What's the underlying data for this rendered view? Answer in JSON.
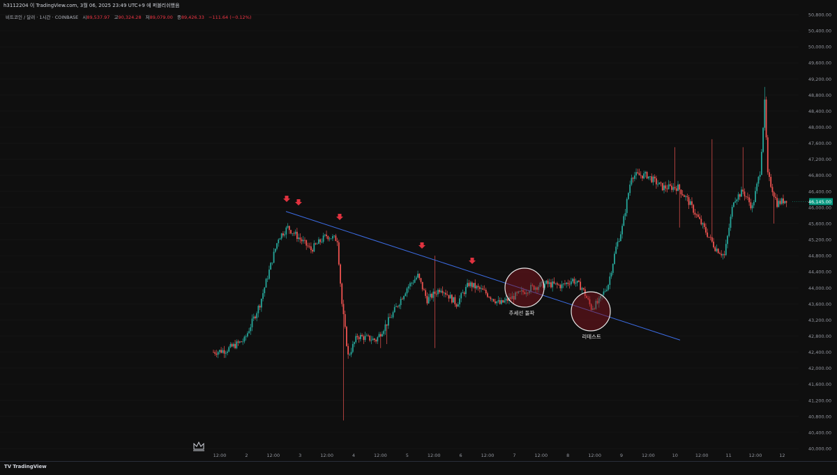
{
  "header": {
    "publisher_line": "h3112204 이 TradingView.com, 3월 06, 2025 23:49 UTC+9 에 퍼블리쉬했음"
  },
  "legend": {
    "symbol": "비트코인 / 달러 · 1시간 · COINBASE",
    "open_label": "시",
    "open_value": "89,537.97",
    "high_label": "고",
    "high_value": "90,324.28",
    "low_label": "저",
    "low_value": "89,079.00",
    "close_label": "종",
    "close_value": "89,426.33",
    "change": "−111.64 (−0.12%)"
  },
  "footer": {
    "logo_text": "TradingView"
  },
  "colors": {
    "background": "#0f0f0f",
    "up": "#26a69a",
    "down": "#ef5350",
    "trendline": "#3d6ee8",
    "arrow": "#e0323f",
    "price_tag": "#089981"
  },
  "chart_data": {
    "type": "candlestick",
    "interval": "1H",
    "y_axis": {
      "min": 40000,
      "max": 50800,
      "step": 400,
      "side": "right",
      "tick_labels": [
        "50,800.00",
        "50,400.00",
        "50,000.00",
        "49,600.00",
        "49,200.00",
        "48,800.00",
        "48,400.00",
        "48,000.00",
        "47,600.00",
        "47,200.00",
        "46,800.00",
        "46,400.00",
        "46,000.00",
        "45,600.00",
        "45,200.00",
        "44,800.00",
        "44,400.00",
        "44,000.00",
        "43,600.00",
        "43,200.00",
        "42,800.00",
        "42,400.00",
        "42,000.00",
        "41,600.00",
        "41,200.00",
        "40,800.00",
        "40,400.00",
        "40,000.00"
      ]
    },
    "x_axis": {
      "tick_labels": [
        "12:00",
        "2",
        "12:00",
        "3",
        "12:00",
        "4",
        "12:00",
        "5",
        "12:00",
        "6",
        "12:00",
        "7",
        "12:00",
        "8",
        "12:00",
        "9",
        "12:00",
        "10",
        "12:00",
        "11",
        "12:00",
        "12"
      ]
    },
    "last_price_label": "46,145.00",
    "anchors": [
      {
        "t": 0,
        "p": 42400
      },
      {
        "t": 8,
        "p": 42450
      },
      {
        "t": 20,
        "p": 42700
      },
      {
        "t": 30,
        "p": 43600
      },
      {
        "t": 42,
        "p": 45250
      },
      {
        "t": 48,
        "p": 45500
      },
      {
        "t": 55,
        "p": 45250
      },
      {
        "t": 63,
        "p": 44950
      },
      {
        "t": 73,
        "p": 45300
      },
      {
        "t": 80,
        "p": 45200
      },
      {
        "t": 83,
        "p": 43600
      },
      {
        "t": 87,
        "p": 42300
      },
      {
        "t": 93,
        "p": 42800
      },
      {
        "t": 105,
        "p": 42700
      },
      {
        "t": 115,
        "p": 43300
      },
      {
        "t": 125,
        "p": 44000
      },
      {
        "t": 132,
        "p": 44300
      },
      {
        "t": 138,
        "p": 43700
      },
      {
        "t": 147,
        "p": 44000
      },
      {
        "t": 157,
        "p": 43600
      },
      {
        "t": 165,
        "p": 44100
      },
      {
        "t": 175,
        "p": 43900
      },
      {
        "t": 185,
        "p": 43600
      },
      {
        "t": 195,
        "p": 43800
      },
      {
        "t": 205,
        "p": 44000
      },
      {
        "t": 215,
        "p": 44100
      },
      {
        "t": 225,
        "p": 44050
      },
      {
        "t": 232,
        "p": 44200
      },
      {
        "t": 238,
        "p": 44000
      },
      {
        "t": 244,
        "p": 43500
      },
      {
        "t": 249,
        "p": 43650
      },
      {
        "t": 255,
        "p": 44100
      },
      {
        "t": 260,
        "p": 45000
      },
      {
        "t": 264,
        "p": 45500
      },
      {
        "t": 270,
        "p": 46800
      },
      {
        "t": 280,
        "p": 46800
      },
      {
        "t": 290,
        "p": 46500
      },
      {
        "t": 300,
        "p": 46500
      },
      {
        "t": 306,
        "p": 46200
      },
      {
        "t": 312,
        "p": 45800
      },
      {
        "t": 318,
        "p": 45400
      },
      {
        "t": 324,
        "p": 45000
      },
      {
        "t": 330,
        "p": 44800
      },
      {
        "t": 336,
        "p": 46200
      },
      {
        "t": 342,
        "p": 46400
      },
      {
        "t": 348,
        "p": 46000
      },
      {
        "t": 353,
        "p": 46900
      },
      {
        "t": 356,
        "p": 48600
      },
      {
        "t": 358,
        "p": 46800
      },
      {
        "t": 364,
        "p": 46100
      },
      {
        "t": 370,
        "p": 46200
      }
    ],
    "spike_wicks": [
      {
        "t": 84,
        "low": 40700
      },
      {
        "t": 108,
        "low": 42500
      },
      {
        "t": 112,
        "low": 42600
      },
      {
        "t": 143,
        "high": 44800
      },
      {
        "t": 143,
        "low": 42500
      },
      {
        "t": 298,
        "high": 47500
      },
      {
        "t": 301,
        "low": 45500
      },
      {
        "t": 322,
        "high": 47700
      },
      {
        "t": 342,
        "high": 47500
      },
      {
        "t": 356,
        "high": 49000
      },
      {
        "t": 362,
        "low": 45600
      }
    ],
    "trendline": {
      "x1": 0,
      "y1": 45900,
      "x2": 1,
      "y2": 42700
    },
    "annotations": [
      {
        "type": "arrow",
        "label": ""
      },
      {
        "type": "circle",
        "label": "추세선 돌파"
      },
      {
        "type": "circle",
        "label": "리테스트"
      }
    ]
  }
}
